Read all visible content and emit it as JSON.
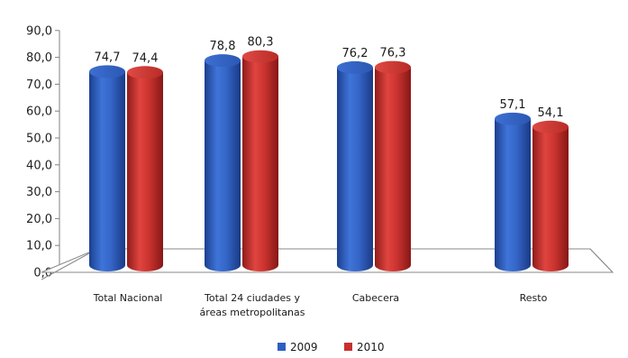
{
  "chart_data": {
    "type": "bar",
    "title": "",
    "xlabel": "",
    "ylabel": "",
    "ylim": [
      0,
      90
    ],
    "y_ticks": [
      "0,0",
      "10,0",
      "20,0",
      "30,0",
      "40,0",
      "50,0",
      "60,0",
      "70,0",
      "80,0",
      "90,0"
    ],
    "categories": [
      [
        "Total Nacional"
      ],
      [
        "Total 24 ciudades y",
        "áreas metropolitanas"
      ],
      [
        "Cabecera"
      ],
      [
        "Resto"
      ]
    ],
    "series": [
      {
        "name": "2009",
        "color": "#2e5fc0",
        "values": [
          74.7,
          78.8,
          76.2,
          57.1
        ],
        "labels": [
          "74,7",
          "78,8",
          "76,2",
          "57,1"
        ]
      },
      {
        "name": "2010",
        "color": "#c8302c",
        "values": [
          74.4,
          80.3,
          76.3,
          54.1
        ],
        "labels": [
          "74,4",
          "80,3",
          "76,3",
          "54,1"
        ]
      }
    ],
    "legend_position": "bottom-center",
    "grid": false,
    "style": "3d-cylinder"
  }
}
